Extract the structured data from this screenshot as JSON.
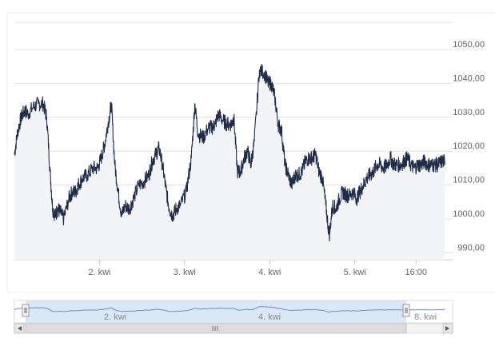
{
  "chart_data": {
    "type": "area",
    "title": "",
    "xlabel": "",
    "ylabel": "",
    "ylim": [
      988,
      1058
    ],
    "y_ticks": [
      990,
      1000,
      1010,
      1020,
      1030,
      1040,
      1050
    ],
    "y_tick_labels": [
      "990,00",
      "1000,00",
      "1010,00",
      "1020,00",
      "1030,00",
      "1040,00",
      "1050,00"
    ],
    "x_tick_labels": [
      "2. kwi",
      "3. kwi",
      "4. kwi",
      "5. kwi",
      "16:00"
    ],
    "grid": true,
    "x_unit": "trading day (1 = 1. kwi)",
    "series": [
      {
        "x": [
          1.0,
          1.04,
          1.08,
          1.12,
          1.16,
          1.22,
          1.28,
          1.34,
          1.38,
          1.42,
          1.45,
          1.48,
          1.51,
          1.54,
          1.58,
          1.64,
          1.68,
          1.72,
          1.75,
          1.8,
          1.86,
          1.92,
          1.98,
          2.02,
          2.06,
          2.1,
          2.14,
          2.18,
          2.22,
          2.26,
          2.3,
          2.35,
          2.4,
          2.46,
          2.52,
          2.58,
          2.62,
          2.66,
          2.7,
          2.74,
          2.78,
          2.82,
          2.86,
          2.9,
          2.95,
          3.02,
          3.08,
          3.12,
          3.16,
          3.22,
          3.28,
          3.32,
          3.36,
          3.4,
          3.45,
          3.5,
          3.55,
          3.58,
          3.62,
          3.66,
          3.7,
          3.74,
          3.78,
          3.82,
          3.88,
          3.94,
          3.98,
          4.02,
          4.06,
          4.1,
          4.14,
          4.18,
          4.22,
          4.26,
          4.3,
          4.34,
          4.38,
          4.42,
          4.46,
          4.5,
          4.54,
          4.58,
          4.62,
          4.66,
          4.7,
          4.74,
          4.78,
          4.82,
          4.86,
          4.9,
          4.94,
          4.98,
          5.02,
          5.06,
          5.1,
          5.14,
          5.18,
          5.22,
          5.26,
          5.3,
          5.34,
          5.38,
          5.42,
          5.46,
          5.5,
          5.54,
          5.58,
          5.62,
          5.66,
          5.7,
          5.74,
          5.78,
          5.82,
          5.86,
          5.9,
          5.94,
          5.98,
          6.02,
          6.06
        ],
        "values": [
          1019,
          1026,
          1030,
          1032,
          1031,
          1033,
          1034,
          1034,
          1030,
          1014,
          1003,
          1001,
          1003,
          1002,
          1000,
          1006,
          1008,
          1008,
          1010,
          1012,
          1013,
          1015,
          1015,
          1018,
          1022,
          1028,
          1034,
          1016,
          1008,
          1001,
          1004,
          1003,
          1006,
          1010,
          1011,
          1013,
          1017,
          1019,
          1021,
          1016,
          1009,
          1003,
          1001,
          1003,
          1004,
          1008,
          1018,
          1034,
          1025,
          1024,
          1027,
          1027,
          1028,
          1031,
          1029,
          1028,
          1028,
          1030,
          1014,
          1014,
          1018,
          1020,
          1016,
          1023,
          1044,
          1043,
          1040,
          1040,
          1036,
          1028,
          1026,
          1016,
          1013,
          1010,
          1013,
          1013,
          1014,
          1017,
          1018,
          1018,
          1019,
          1014,
          1012,
          1004,
          995,
          1004,
          1003,
          1006,
          1008,
          1007,
          1007,
          1008,
          1006,
          1008,
          1010,
          1012,
          1013,
          1014,
          1016,
          1016,
          1015,
          1016,
          1018,
          1016,
          1016,
          1016,
          1017,
          1018,
          1016,
          1015,
          1016,
          1016,
          1017,
          1016,
          1016,
          1016,
          1016,
          1017,
          1017
        ]
      }
    ],
    "navigator": {
      "x_tick_labels": [
        "2. kwi",
        "4. kwi",
        "8. kwi"
      ]
    },
    "colors": {
      "line": "#1f2d4a",
      "area": "#f2f4f7",
      "grid": "#e0e0e0",
      "axis_text": "#666666",
      "navigator_fill": "#d6e4f5",
      "navigator_line": "#6f8fc0",
      "handle": "#f2f2f2",
      "scrollbar": "#ececec"
    }
  }
}
